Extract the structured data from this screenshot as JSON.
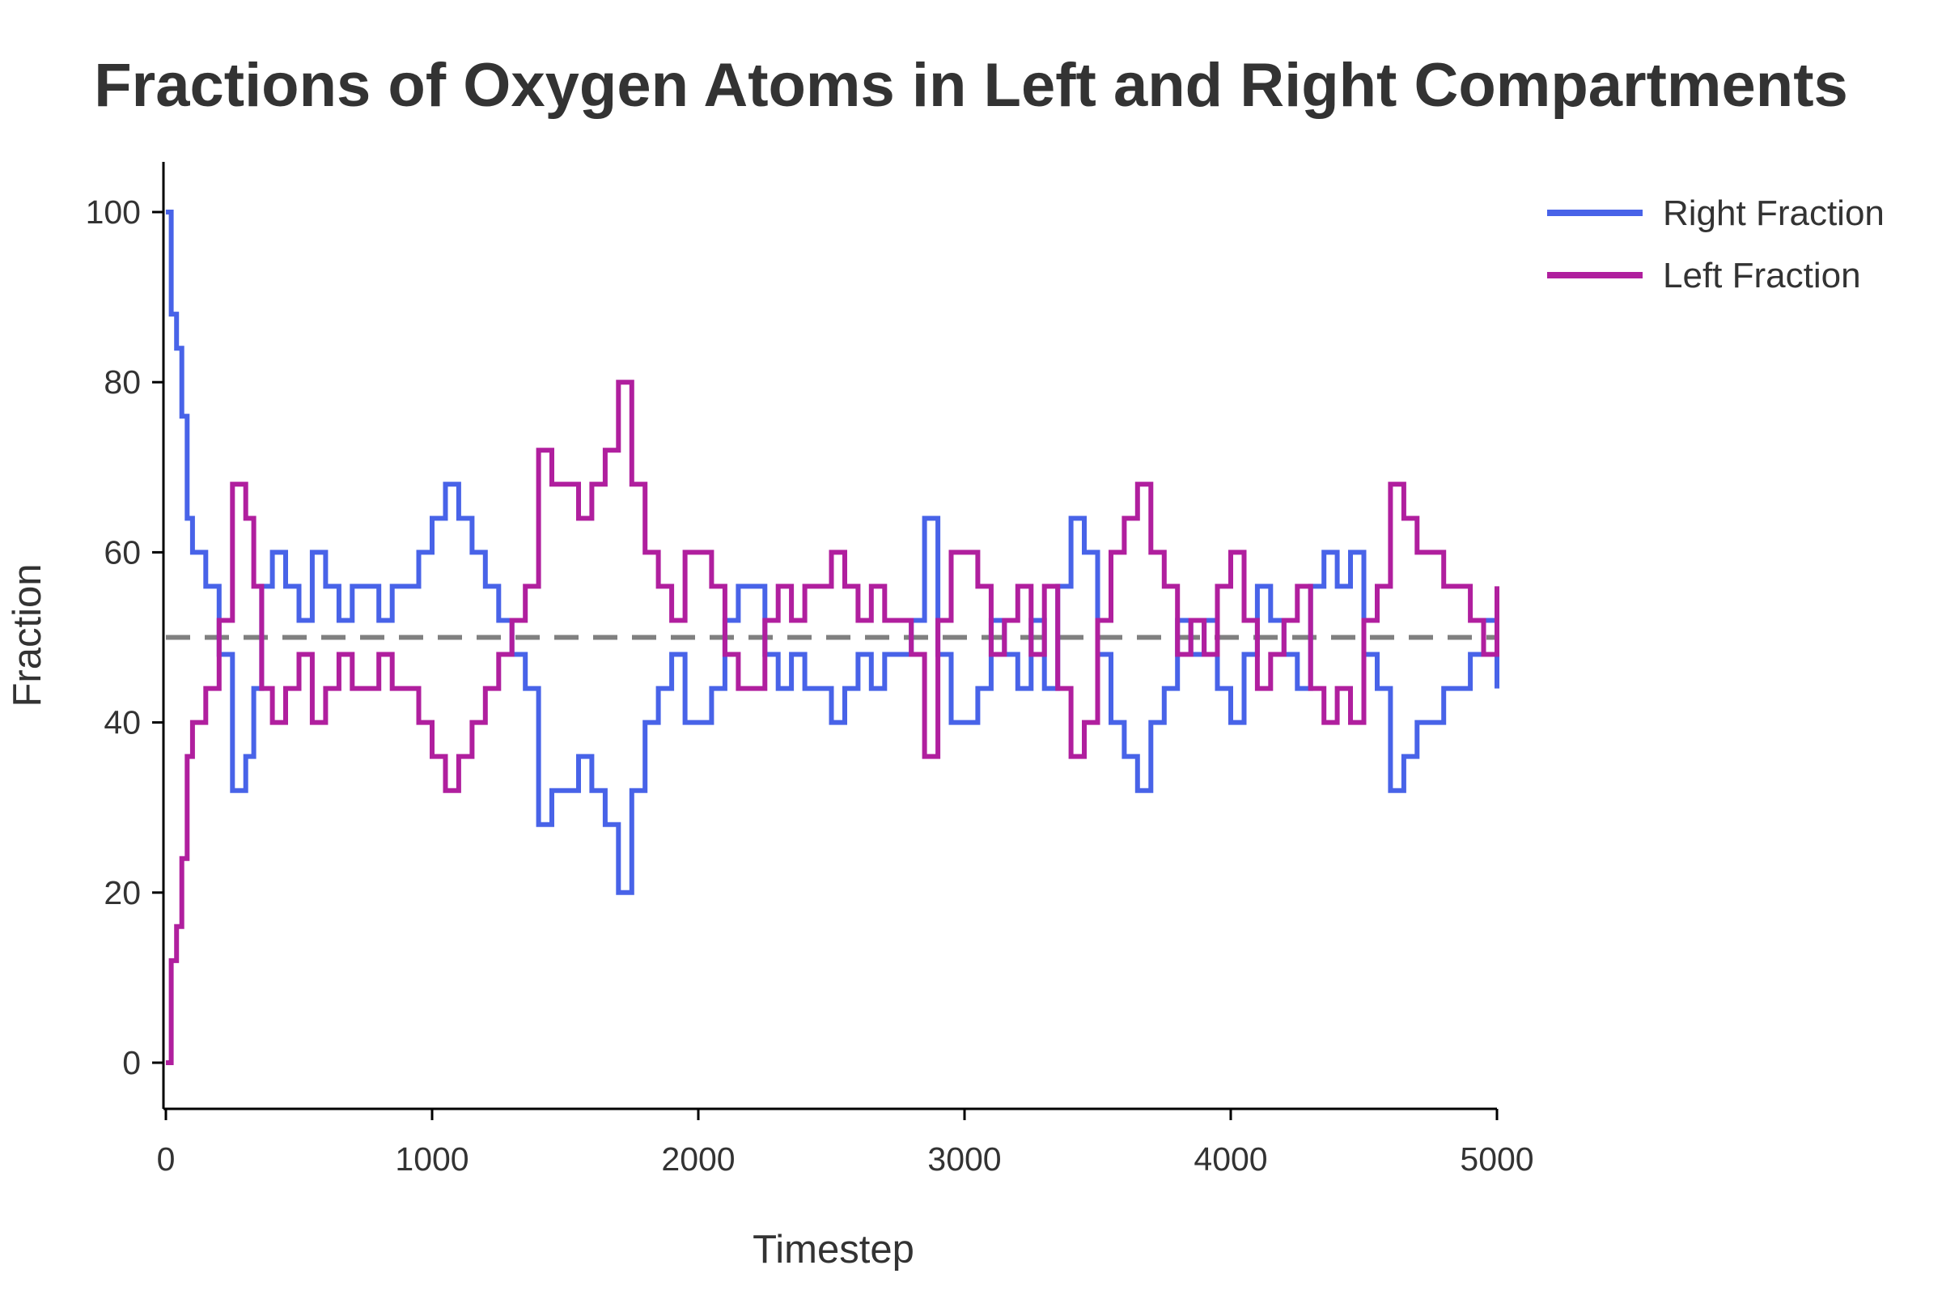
{
  "chart_data": {
    "type": "line",
    "title": "Fractions of Oxygen Atoms in Left and Right Compartments",
    "xlabel": "Timestep",
    "ylabel": "Fraction",
    "xlim": [
      0,
      5000
    ],
    "ylim": [
      -5,
      105
    ],
    "xticks": [
      0,
      1000,
      2000,
      3000,
      4000,
      5000
    ],
    "yticks": [
      0,
      20,
      40,
      60,
      80,
      100
    ],
    "grid": false,
    "legend_position": "top-right",
    "reference_line": {
      "y": 50,
      "style": "dashed",
      "color": "#808080"
    },
    "series": [
      {
        "name": "Right Fraction",
        "color": "#4863E8",
        "x": [
          0,
          20,
          40,
          60,
          80,
          100,
          120,
          150,
          200,
          250,
          300,
          330,
          360,
          400,
          450,
          500,
          550,
          600,
          650,
          700,
          800,
          850,
          900,
          950,
          1000,
          1050,
          1100,
          1150,
          1200,
          1250,
          1300,
          1350,
          1400,
          1450,
          1500,
          1550,
          1600,
          1650,
          1700,
          1750,
          1800,
          1850,
          1900,
          1950,
          2000,
          2050,
          2100,
          2150,
          2200,
          2250,
          2300,
          2350,
          2400,
          2450,
          2500,
          2550,
          2600,
          2650,
          2700,
          2750,
          2800,
          2850,
          2900,
          2950,
          3000,
          3050,
          3100,
          3150,
          3200,
          3250,
          3300,
          3350,
          3400,
          3450,
          3500,
          3550,
          3600,
          3650,
          3700,
          3750,
          3800,
          3850,
          3900,
          3950,
          4000,
          4050,
          4100,
          4150,
          4200,
          4250,
          4300,
          4350,
          4400,
          4450,
          4500,
          4550,
          4600,
          4650,
          4700,
          4750,
          4800,
          4850,
          4900,
          4950,
          5000
        ],
        "y": [
          100,
          88,
          84,
          76,
          64,
          60,
          60,
          56,
          48,
          32,
          36,
          44,
          56,
          60,
          56,
          52,
          60,
          56,
          52,
          56,
          52,
          56,
          56,
          60,
          64,
          68,
          64,
          60,
          56,
          52,
          48,
          44,
          28,
          32,
          32,
          36,
          32,
          28,
          20,
          32,
          40,
          44,
          48,
          40,
          40,
          44,
          52,
          56,
          56,
          48,
          44,
          48,
          44,
          44,
          40,
          44,
          48,
          44,
          48,
          48,
          52,
          64,
          48,
          40,
          40,
          44,
          52,
          48,
          44,
          52,
          44,
          56,
          64,
          60,
          48,
          40,
          36,
          32,
          40,
          44,
          52,
          48,
          52,
          44,
          40,
          48,
          56,
          52,
          48,
          44,
          56,
          60,
          56,
          60,
          48,
          44,
          32,
          36,
          40,
          40,
          44,
          44,
          48,
          52,
          44
        ]
      },
      {
        "name": "Left Fraction",
        "color": "#B01F9E",
        "x": [
          0,
          20,
          40,
          60,
          80,
          100,
          120,
          150,
          200,
          250,
          300,
          330,
          360,
          400,
          450,
          500,
          550,
          600,
          650,
          700,
          800,
          850,
          900,
          950,
          1000,
          1050,
          1100,
          1150,
          1200,
          1250,
          1300,
          1350,
          1400,
          1450,
          1500,
          1550,
          1600,
          1650,
          1700,
          1750,
          1800,
          1850,
          1900,
          1950,
          2000,
          2050,
          2100,
          2150,
          2200,
          2250,
          2300,
          2350,
          2400,
          2450,
          2500,
          2550,
          2600,
          2650,
          2700,
          2750,
          2800,
          2850,
          2900,
          2950,
          3000,
          3050,
          3100,
          3150,
          3200,
          3250,
          3300,
          3350,
          3400,
          3450,
          3500,
          3550,
          3600,
          3650,
          3700,
          3750,
          3800,
          3850,
          3900,
          3950,
          4000,
          4050,
          4100,
          4150,
          4200,
          4250,
          4300,
          4350,
          4400,
          4450,
          4500,
          4550,
          4600,
          4650,
          4700,
          4750,
          4800,
          4850,
          4900,
          4950,
          5000
        ],
        "y": [
          0,
          12,
          16,
          24,
          36,
          40,
          40,
          44,
          52,
          68,
          64,
          56,
          44,
          40,
          44,
          48,
          40,
          44,
          48,
          44,
          48,
          44,
          44,
          40,
          36,
          32,
          36,
          40,
          44,
          48,
          52,
          56,
          72,
          68,
          68,
          64,
          68,
          72,
          80,
          68,
          60,
          56,
          52,
          60,
          60,
          56,
          48,
          44,
          44,
          52,
          56,
          52,
          56,
          56,
          60,
          56,
          52,
          56,
          52,
          52,
          48,
          36,
          52,
          60,
          60,
          56,
          48,
          52,
          56,
          48,
          56,
          44,
          36,
          40,
          52,
          60,
          64,
          68,
          60,
          56,
          48,
          52,
          48,
          56,
          60,
          52,
          44,
          48,
          52,
          56,
          44,
          40,
          44,
          40,
          52,
          56,
          68,
          64,
          60,
          60,
          56,
          56,
          52,
          48,
          56
        ]
      }
    ]
  }
}
